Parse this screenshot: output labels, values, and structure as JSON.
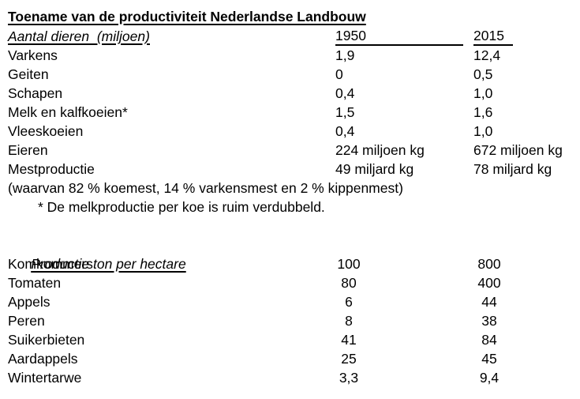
{
  "page": {
    "background_color": "#ffffff",
    "text_color": "#000000"
  },
  "title": "Toename van de productiviteit Nederlandse Landbouw",
  "animals_table": {
    "header": {
      "label": "Aantal dieren  (miljoen)",
      "col_1950": "1950",
      "col_2015": "2015"
    },
    "rows": [
      {
        "label": "Varkens",
        "v1950": "1,9",
        "v2015": "12,4"
      },
      {
        "label": "Geiten",
        "v1950": "0",
        "v2015": "0,5"
      },
      {
        "label": "Schapen",
        "v1950": "0,4",
        "v2015": "1,0"
      },
      {
        "label": "Melk en kalfkoeien*",
        "v1950": "1,5",
        "v2015": "1,6"
      },
      {
        "label": "Vleeskoeien",
        "v1950": "0,4",
        "v2015": "1,0"
      },
      {
        "label": "Eieren",
        "v1950": "224 miljoen kg",
        "v2015": "672 miljoen kg"
      },
      {
        "label": "Mestproductie",
        "v1950": "49 miljard kg",
        "v2015": "78 miljard kg"
      }
    ],
    "note": "(waarvan 82 % koemest, 14 % varkensmest en 2 % kippenmest)",
    "footnote": "* De melkproductie per koe is ruim verdubbeld."
  },
  "production_table": {
    "header": {
      "label": "Productie ton per hectare"
    },
    "rows": [
      {
        "label": "Komkommers",
        "v1950": "100",
        "v2015": "800"
      },
      {
        "label": "Tomaten",
        "v1950": "80",
        "v2015": "400"
      },
      {
        "label": "Appels",
        "v1950": "6",
        "v2015": "44"
      },
      {
        "label": "Peren",
        "v1950": "8",
        "v2015": "38"
      },
      {
        "label": "Suikerbieten",
        "v1950": "41",
        "v2015": "84"
      },
      {
        "label": "Aardappels",
        "v1950": "25",
        "v2015": "45"
      },
      {
        "label": "Wintertarwe",
        "v1950": "3,3",
        "v2015": "9,4"
      }
    ]
  }
}
